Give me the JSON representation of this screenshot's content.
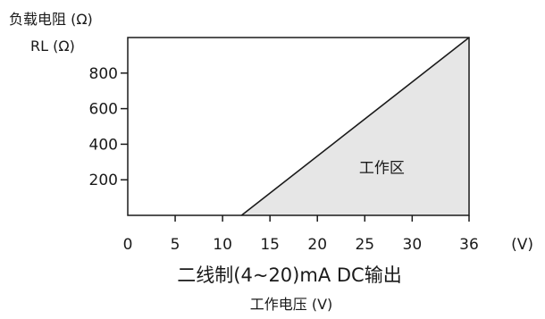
{
  "chart_data": {
    "type": "area",
    "ylabel_line1": "负载电阻 (Ω)",
    "ylabel_line2": "RL (Ω)",
    "xlabel_main": "二线制(4~20)mA  DC输出",
    "xlabel_sub": "工作电压 (V)",
    "x_unit": "(V)",
    "x_ticks": [
      0,
      5,
      10,
      15,
      20,
      25,
      30,
      36
    ],
    "y_ticks": [
      200,
      400,
      600,
      800
    ],
    "xlim": [
      0,
      36
    ],
    "ylim": [
      0,
      1000
    ],
    "series": [
      {
        "x": [
          12,
          36
        ],
        "y": [
          0,
          1000
        ]
      }
    ],
    "region_label": "工作区",
    "region_fill": "#e6e6e6",
    "line_color": "#1a1a1a"
  }
}
